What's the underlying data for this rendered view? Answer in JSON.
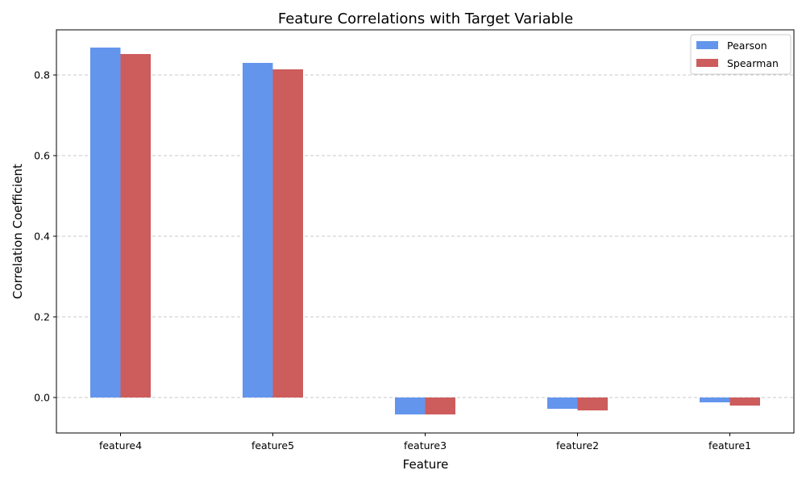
{
  "chart_data": {
    "type": "bar",
    "title": "Feature Correlations with Target Variable",
    "xlabel": "Feature",
    "ylabel": "Correlation Coefficient",
    "categories": [
      "feature4",
      "feature5",
      "feature3",
      "feature2",
      "feature1"
    ],
    "series": [
      {
        "name": "Pearson",
        "color": "#6495ED",
        "values": [
          0.868,
          0.83,
          -0.042,
          -0.028,
          -0.012
        ]
      },
      {
        "name": "Spearman",
        "color": "#CD5C5C",
        "values": [
          0.852,
          0.814,
          -0.042,
          -0.032,
          -0.02
        ]
      }
    ],
    "ylim": [
      -0.088,
      0.912
    ],
    "yticks": [
      0.0,
      0.2,
      0.4,
      0.6,
      0.8
    ],
    "ytick_labels": [
      "0.0",
      "0.2",
      "0.4",
      "0.6",
      "0.8"
    ],
    "grid": "y-axis dashed",
    "legend_position": "top-right"
  }
}
